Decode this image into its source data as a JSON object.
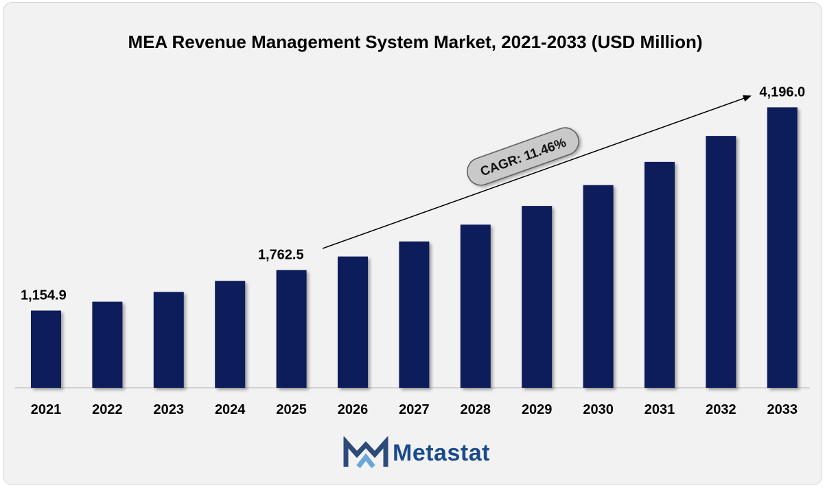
{
  "chart_data": {
    "type": "bar",
    "title": "MEA Revenue Management System Market, 2021-2033 (USD Million)",
    "categories": [
      "2021",
      "2022",
      "2023",
      "2024",
      "2025",
      "2026",
      "2027",
      "2028",
      "2029",
      "2030",
      "2031",
      "2032",
      "2033"
    ],
    "values": [
      1154.9,
      1287.3,
      1434.9,
      1599.4,
      1762.5,
      1964.5,
      2189.7,
      2440.6,
      2720.4,
      3032.2,
      3379.8,
      3767.2,
      4196.0
    ],
    "labeled_values": {
      "2021": "1,154.9",
      "2025": "1,762.5",
      "2033": "4,196.0"
    },
    "annotation": "CAGR: 11.46%",
    "xlabel": "",
    "ylabel": "",
    "ylim": [
      0,
      4200
    ],
    "grid": false,
    "bar_color": "#0c1b5a"
  },
  "logo": {
    "text": "Metastat",
    "text_color": "#1a4a8a",
    "mark_colors": [
      "#2c4a7a",
      "#6aa7d8"
    ]
  }
}
